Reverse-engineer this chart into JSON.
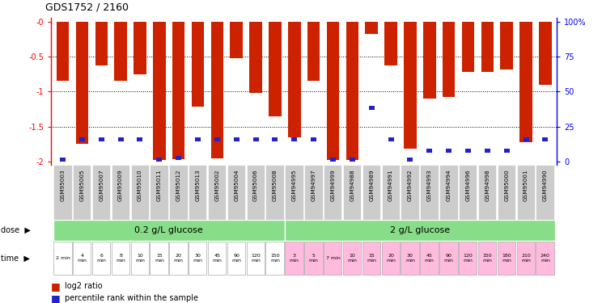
{
  "title": "GDS1752 / 2160",
  "samples": [
    "GSM95003",
    "GSM95005",
    "GSM95007",
    "GSM95009",
    "GSM95010",
    "GSM95011",
    "GSM95012",
    "GSM95013",
    "GSM95002",
    "GSM95004",
    "GSM95006",
    "GSM95008",
    "GSM94995",
    "GSM94997",
    "GSM94999",
    "GSM94988",
    "GSM94989",
    "GSM94991",
    "GSM94992",
    "GSM94993",
    "GSM94994",
    "GSM94996",
    "GSM94998",
    "GSM95000",
    "GSM95001",
    "GSM94990"
  ],
  "log2_ratio": [
    -0.85,
    -1.75,
    -0.62,
    -0.85,
    -0.75,
    -1.98,
    -1.97,
    -1.22,
    -1.95,
    -0.52,
    -1.02,
    -1.35,
    -1.65,
    -0.85,
    -1.98,
    -1.98,
    -0.18,
    -0.62,
    -1.82,
    -1.1,
    -1.08,
    -0.72,
    -0.72,
    -0.68,
    -1.72,
    -0.9
  ],
  "percentile": [
    4,
    18,
    18,
    18,
    18,
    4,
    5,
    18,
    18,
    18,
    18,
    18,
    18,
    18,
    4,
    4,
    40,
    18,
    4,
    10,
    10,
    10,
    10,
    10,
    18,
    18
  ],
  "ylim": [
    -2.05,
    0.05
  ],
  "yticks": [
    0,
    -0.5,
    -1.0,
    -1.5,
    -2.0
  ],
  "yticklabels_left": [
    "-0",
    "-0.5",
    "-1",
    "-1.5",
    "-2"
  ],
  "yticklabels_right": [
    "100%",
    "75",
    "50",
    "25",
    "0"
  ],
  "dose_group1_label": "0.2 g/L glucose",
  "dose_group2_label": "2 g/L glucose",
  "dose_group1_count": 12,
  "dose_group2_count": 14,
  "time_labels_1": [
    "2 min",
    "4\nmin",
    "6\nmin",
    "8\nmin",
    "10\nmin",
    "15\nmin",
    "20\nmin",
    "30\nmin",
    "45\nmin",
    "90\nmin",
    "120\nmin",
    "150\nmin"
  ],
  "time_labels_2": [
    "3\nmin",
    "5\nmin",
    "7 min",
    "10\nmin",
    "15\nmin",
    "20\nmin",
    "30\nmin",
    "45\nmin",
    "90\nmin",
    "120\nmin",
    "150\nmin",
    "180\nmin",
    "210\nmin",
    "240\nmin"
  ],
  "bar_color": "#cc2200",
  "percentile_color": "#2222cc",
  "dose_bg": "#88dd88",
  "time_bg1": "#ffffff",
  "time_bg2": "#ffbbdd",
  "grid_color": "#444444",
  "tick_label_bg": "#cccccc",
  "bar_width": 0.65
}
